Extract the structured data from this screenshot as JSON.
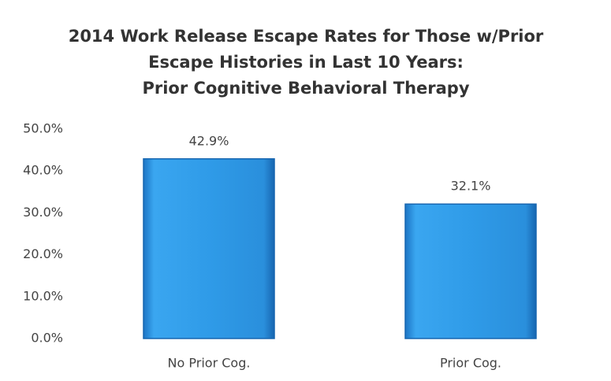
{
  "chart_data": {
    "type": "bar",
    "title": [
      "2014 Work Release Escape Rates for Those w/Prior",
      "Escape Histories in Last 10 Years:",
      "Prior Cognitive Behavioral Therapy"
    ],
    "categories": [
      "No Prior Cog.",
      "Prior Cog."
    ],
    "values": [
      42.9,
      32.1
    ],
    "value_labels": [
      "42.9%",
      "32.1%"
    ],
    "color": "#2f9be8",
    "ylim": [
      0,
      50
    ],
    "yticks": [
      {
        "value": 0,
        "label": "0.0%"
      },
      {
        "value": 10,
        "label": "10.0%"
      },
      {
        "value": 20,
        "label": "20.0%"
      },
      {
        "value": 30,
        "label": "30.0%"
      },
      {
        "value": 40,
        "label": "40.0%"
      },
      {
        "value": 50,
        "label": "50.0%"
      }
    ],
    "grid": false
  }
}
